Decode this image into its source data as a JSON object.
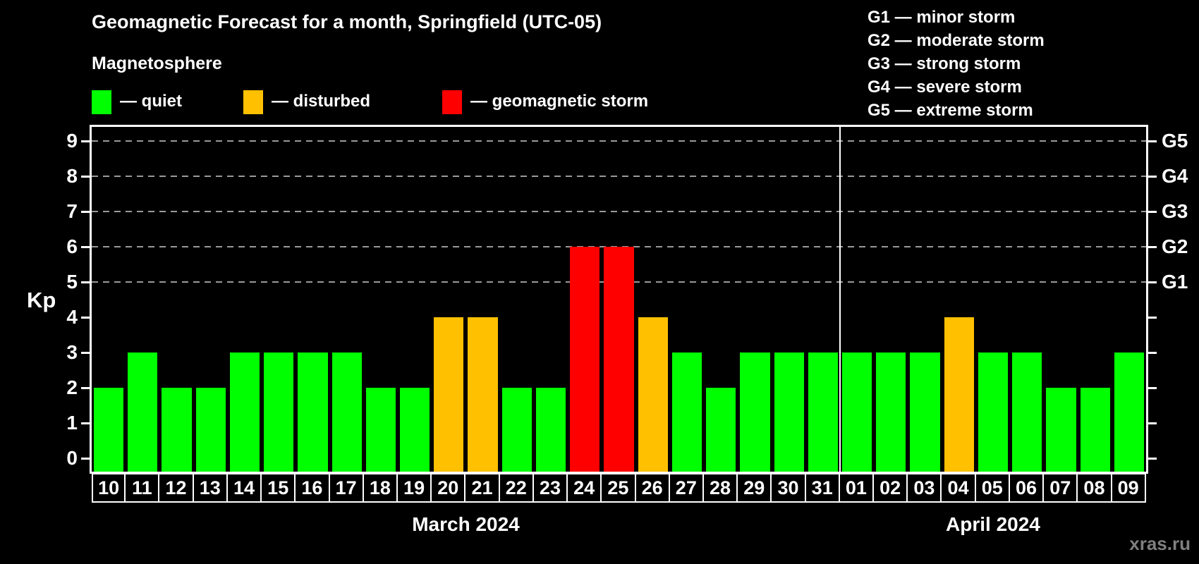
{
  "title": "Geomagnetic Forecast for a month, Springfield (UTC-05)",
  "subtitle": "Magnetosphere",
  "legend": {
    "items": [
      {
        "name": "quiet",
        "label": "— quiet",
        "color": "#00ff00"
      },
      {
        "name": "disturbed",
        "label": "— disturbed",
        "color": "#ffc000"
      },
      {
        "name": "storm",
        "label": "— geomagnetic storm",
        "color": "#ff0000"
      }
    ]
  },
  "g_legend": [
    "G1 — minor storm",
    "G2 — moderate storm",
    "G3 — strong storm",
    "G4 — severe storm",
    "G5 — extreme storm"
  ],
  "watermark": "xras.ru",
  "chart_data": {
    "type": "bar",
    "ylabel": "Kp",
    "ylim": [
      -0.38,
      9.4
    ],
    "yticks": [
      0,
      1,
      2,
      3,
      4,
      5,
      6,
      7,
      8,
      9
    ],
    "gridlines_at": [
      5,
      6,
      7,
      8,
      9
    ],
    "grid": "dashed horizontal at Kp 5-9 only",
    "g_axis": [
      {
        "kp": 5,
        "label": "G1"
      },
      {
        "kp": 6,
        "label": "G2"
      },
      {
        "kp": 7,
        "label": "G3"
      },
      {
        "kp": 8,
        "label": "G4"
      },
      {
        "kp": 9,
        "label": "G5"
      }
    ],
    "colors": {
      "quiet": "#00ff00",
      "disturbed": "#ffc000",
      "storm": "#ff0000"
    },
    "months": [
      {
        "label": "March 2024",
        "days": 22
      },
      {
        "label": "April 2024",
        "days": 9
      }
    ],
    "bars": [
      {
        "day": "10",
        "kp": 2,
        "status": "quiet"
      },
      {
        "day": "11",
        "kp": 3,
        "status": "quiet"
      },
      {
        "day": "12",
        "kp": 2,
        "status": "quiet"
      },
      {
        "day": "13",
        "kp": 2,
        "status": "quiet"
      },
      {
        "day": "14",
        "kp": 3,
        "status": "quiet"
      },
      {
        "day": "15",
        "kp": 3,
        "status": "quiet"
      },
      {
        "day": "16",
        "kp": 3,
        "status": "quiet"
      },
      {
        "day": "17",
        "kp": 3,
        "status": "quiet"
      },
      {
        "day": "18",
        "kp": 2,
        "status": "quiet"
      },
      {
        "day": "19",
        "kp": 2,
        "status": "quiet"
      },
      {
        "day": "20",
        "kp": 4,
        "status": "disturbed"
      },
      {
        "day": "21",
        "kp": 4,
        "status": "disturbed"
      },
      {
        "day": "22",
        "kp": 2,
        "status": "quiet"
      },
      {
        "day": "23",
        "kp": 2,
        "status": "quiet"
      },
      {
        "day": "24",
        "kp": 6,
        "status": "storm"
      },
      {
        "day": "25",
        "kp": 6,
        "status": "storm"
      },
      {
        "day": "26",
        "kp": 4,
        "status": "disturbed"
      },
      {
        "day": "27",
        "kp": 3,
        "status": "quiet"
      },
      {
        "day": "28",
        "kp": 2,
        "status": "quiet"
      },
      {
        "day": "29",
        "kp": 3,
        "status": "quiet"
      },
      {
        "day": "30",
        "kp": 3,
        "status": "quiet"
      },
      {
        "day": "31",
        "kp": 3,
        "status": "quiet"
      },
      {
        "day": "01",
        "kp": 3,
        "status": "quiet"
      },
      {
        "day": "02",
        "kp": 3,
        "status": "quiet"
      },
      {
        "day": "03",
        "kp": 3,
        "status": "quiet"
      },
      {
        "day": "04",
        "kp": 4,
        "status": "disturbed"
      },
      {
        "day": "05",
        "kp": 3,
        "status": "quiet"
      },
      {
        "day": "06",
        "kp": 3,
        "status": "quiet"
      },
      {
        "day": "07",
        "kp": 2,
        "status": "quiet"
      },
      {
        "day": "08",
        "kp": 2,
        "status": "quiet"
      },
      {
        "day": "09",
        "kp": 3,
        "status": "quiet"
      }
    ]
  }
}
